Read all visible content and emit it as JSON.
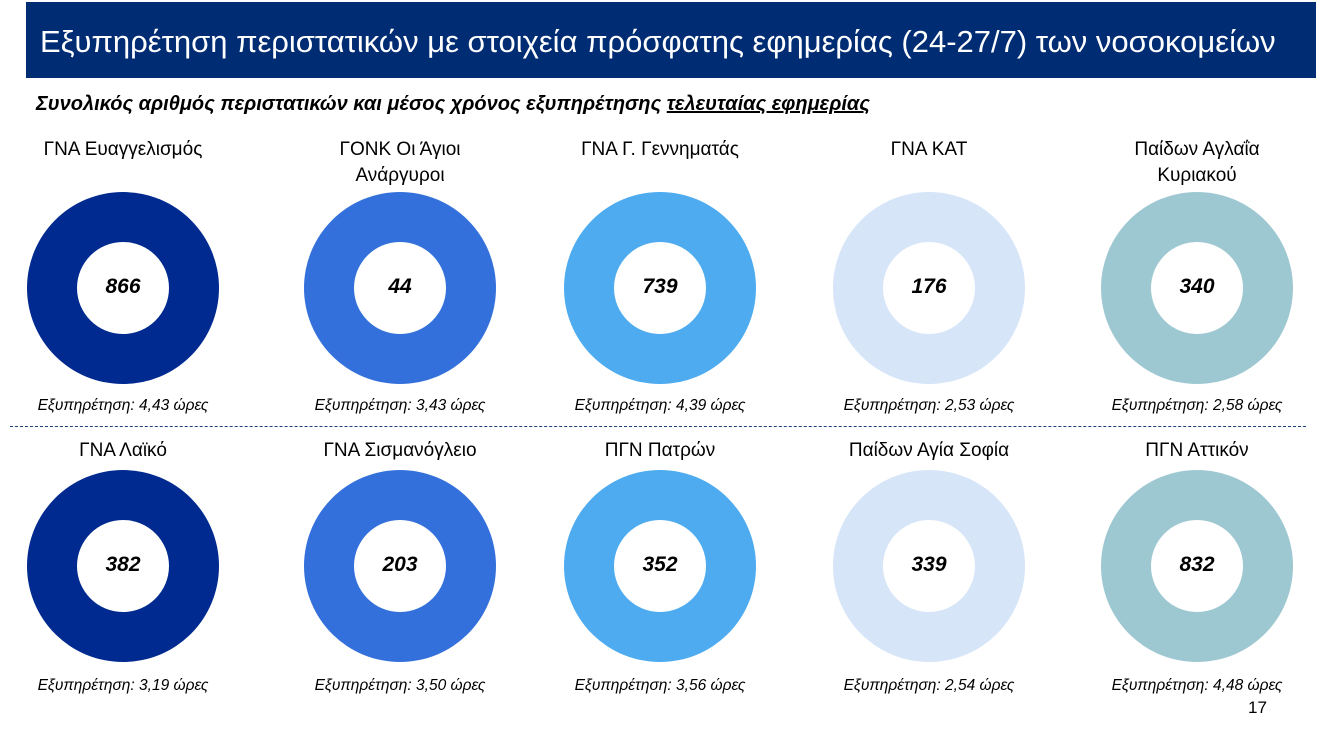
{
  "title": "Εξυπηρέτηση περιστατικών με στοιχεία πρόσφατης εφημερίας (24-27/7) των νοσοκομείων",
  "subtitle_main": "Συνολικός αριθμός περιστατικών και μέσος χρόνος εξυπηρέτησης ",
  "subtitle_underlined": "τελευταίας εφημερίας",
  "page_number": "17",
  "colors": {
    "banner": "#002c73",
    "palette": [
      "#002a8f",
      "#3470db",
      "#4eabf0",
      "#d6e5f7",
      "#9ec8d1"
    ]
  },
  "chart_data": {
    "type": "donut",
    "hospitals": [
      {
        "name": "ΓΝΑ Ευαγγελισμός",
        "cases": 866,
        "cases_label": "866",
        "service": "Εξυπηρέτηση: 4,43 ώρες",
        "color": "#002a8f"
      },
      {
        "name": "ΓΟΝΚ Οι Άγιοι\nΑνάργυροι",
        "cases": 44,
        "cases_label": "44",
        "service": "Εξυπηρέτηση: 3,43 ώρες",
        "color": "#3470db"
      },
      {
        "name": "ΓΝΑ Γ. Γεννηματάς",
        "cases": 739,
        "cases_label": "739",
        "service": "Εξυπηρέτηση: 4,39 ώρες",
        "color": "#4eabf0"
      },
      {
        "name": "ΓΝΑ ΚΑΤ",
        "cases": 176,
        "cases_label": "176",
        "service": "Εξυπηρέτηση: 2,53 ώρες",
        "color": "#d6e5f7"
      },
      {
        "name": "Παίδων Αγλαΐα\nΚυριακού",
        "cases": 340,
        "cases_label": "340",
        "service": "Εξυπηρέτηση: 2,58 ώρες",
        "color": "#9ec8d1"
      },
      {
        "name": "ΓΝΑ Λαϊκό",
        "cases": 382,
        "cases_label": "382",
        "service": "Εξυπηρέτηση: 3,19 ώρες",
        "color": "#002a8f"
      },
      {
        "name": "ΓΝΑ Σισμανόγλειο",
        "cases": 203,
        "cases_label": "203",
        "service": "Εξυπηρέτηση: 3,50 ώρες",
        "color": "#3470db"
      },
      {
        "name": "ΠΓΝ Πατρών",
        "cases": 352,
        "cases_label": "352",
        "service": "Εξυπηρέτηση: 3,56 ώρες",
        "color": "#4eabf0"
      },
      {
        "name": "Παίδων Αγία Σοφία",
        "cases": 339,
        "cases_label": "339",
        "service": "Εξυπηρέτηση: 2,54 ώρες",
        "color": "#d6e5f7"
      },
      {
        "name": "ΠΓΝ Αττικόν",
        "cases": 832,
        "cases_label": "832",
        "service": "Εξυπηρέτηση: 4,48 ώρες",
        "color": "#9ec8d1"
      }
    ]
  }
}
